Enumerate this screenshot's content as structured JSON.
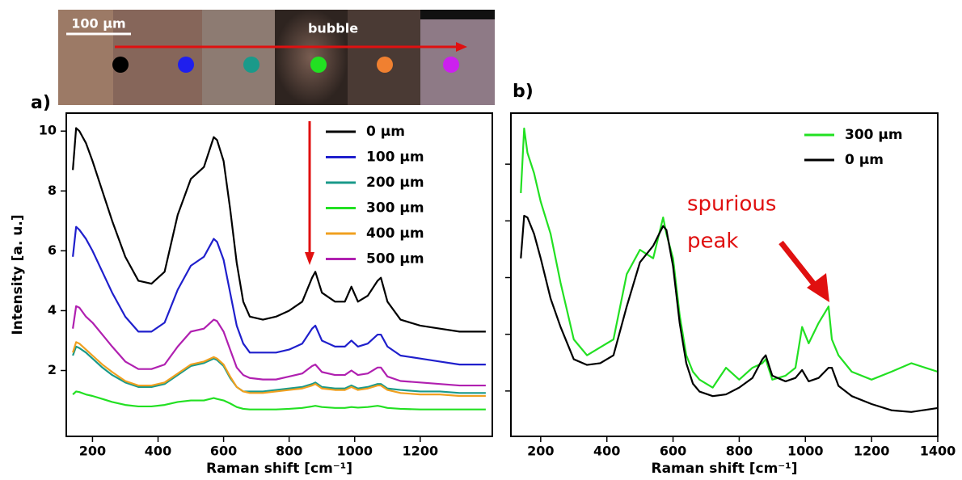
{
  "image": {
    "scale_bar": "100 µm",
    "label": "bubble"
  },
  "chart_data": [
    {
      "type": "line",
      "panel_label": "a)",
      "x_label": "Raman shift [cm⁻¹]",
      "y_label": "Intensity [a. u.]",
      "xlim": [
        120,
        1420
      ],
      "ylim": [
        -0.2,
        10.6
      ],
      "xticks": [
        200,
        400,
        600,
        800,
        1000,
        1200
      ],
      "yticks": [
        2,
        4,
        6,
        8,
        10
      ],
      "ytick_labels": true,
      "legend": "upper-right",
      "x": [
        140,
        150,
        160,
        180,
        200,
        230,
        260,
        300,
        340,
        380,
        420,
        460,
        500,
        540,
        570,
        580,
        600,
        620,
        640,
        660,
        680,
        720,
        760,
        800,
        840,
        870,
        880,
        900,
        940,
        970,
        990,
        1010,
        1040,
        1070,
        1080,
        1100,
        1140,
        1200,
        1260,
        1320,
        1400
      ],
      "series": [
        {
          "name": "0 µm",
          "color": "#000000",
          "values": [
            8.7,
            10.1,
            10.0,
            9.6,
            9.0,
            8.0,
            7.0,
            5.8,
            5.0,
            4.9,
            5.3,
            7.2,
            8.4,
            8.8,
            9.8,
            9.7,
            9.0,
            7.4,
            5.6,
            4.3,
            3.8,
            3.7,
            3.8,
            4.0,
            4.3,
            5.1,
            5.3,
            4.6,
            4.3,
            4.3,
            4.8,
            4.3,
            4.5,
            5.0,
            5.1,
            4.3,
            3.7,
            3.5,
            3.4,
            3.3,
            3.3
          ]
        },
        {
          "name": "100 µm",
          "color": "#1f1fcc",
          "values": [
            5.8,
            6.8,
            6.7,
            6.4,
            6.0,
            5.3,
            4.6,
            3.8,
            3.3,
            3.3,
            3.6,
            4.7,
            5.5,
            5.8,
            6.4,
            6.3,
            5.7,
            4.6,
            3.5,
            2.9,
            2.6,
            2.6,
            2.6,
            2.7,
            2.9,
            3.4,
            3.5,
            3.0,
            2.8,
            2.8,
            3.0,
            2.8,
            2.9,
            3.2,
            3.2,
            2.8,
            2.5,
            2.4,
            2.3,
            2.2,
            2.2
          ]
        },
        {
          "name": "200 µm",
          "color": "#1a9a8a",
          "values": [
            2.5,
            2.8,
            2.75,
            2.6,
            2.4,
            2.1,
            1.85,
            1.6,
            1.45,
            1.45,
            1.55,
            1.85,
            2.15,
            2.25,
            2.4,
            2.35,
            2.15,
            1.75,
            1.45,
            1.3,
            1.3,
            1.3,
            1.35,
            1.4,
            1.45,
            1.55,
            1.6,
            1.45,
            1.4,
            1.4,
            1.5,
            1.4,
            1.45,
            1.55,
            1.55,
            1.4,
            1.35,
            1.3,
            1.3,
            1.25,
            1.25
          ]
        },
        {
          "name": "300 µm",
          "color": "#22e022",
          "values": [
            1.2,
            1.3,
            1.28,
            1.2,
            1.15,
            1.05,
            0.95,
            0.85,
            0.8,
            0.8,
            0.85,
            0.95,
            1.0,
            1.0,
            1.08,
            1.05,
            1.0,
            0.9,
            0.78,
            0.72,
            0.7,
            0.7,
            0.7,
            0.72,
            0.75,
            0.8,
            0.82,
            0.78,
            0.75,
            0.75,
            0.78,
            0.76,
            0.78,
            0.82,
            0.8,
            0.75,
            0.72,
            0.7,
            0.7,
            0.7,
            0.7
          ]
        },
        {
          "name": "400 µm",
          "color": "#f0a020",
          "values": [
            2.6,
            2.95,
            2.9,
            2.7,
            2.5,
            2.2,
            1.95,
            1.65,
            1.5,
            1.5,
            1.6,
            1.9,
            2.2,
            2.3,
            2.45,
            2.4,
            2.2,
            1.8,
            1.45,
            1.3,
            1.25,
            1.25,
            1.3,
            1.35,
            1.4,
            1.5,
            1.55,
            1.4,
            1.35,
            1.35,
            1.45,
            1.35,
            1.4,
            1.5,
            1.5,
            1.35,
            1.25,
            1.2,
            1.2,
            1.15,
            1.15
          ]
        },
        {
          "name": "500 µm",
          "color": "#b020b0",
          "values": [
            3.4,
            4.15,
            4.1,
            3.8,
            3.6,
            3.2,
            2.8,
            2.3,
            2.05,
            2.05,
            2.2,
            2.8,
            3.3,
            3.4,
            3.7,
            3.65,
            3.3,
            2.7,
            2.1,
            1.85,
            1.75,
            1.7,
            1.7,
            1.8,
            1.9,
            2.15,
            2.2,
            1.95,
            1.85,
            1.85,
            2.0,
            1.85,
            1.9,
            2.1,
            2.1,
            1.8,
            1.65,
            1.6,
            1.55,
            1.5,
            1.5
          ]
        }
      ]
    },
    {
      "type": "line",
      "panel_label": "b)",
      "x_label": "Raman shift [cm⁻¹]",
      "annotation": [
        "spurious",
        "peak"
      ],
      "xlim": [
        110,
        1400
      ],
      "ylim": [
        0.2,
        5.9
      ],
      "xticks": [
        200,
        400,
        600,
        800,
        1000,
        1200,
        1400
      ],
      "yticks": [
        1,
        2,
        3,
        4,
        5
      ],
      "ytick_labels": false,
      "legend": "upper-right",
      "x": [
        140,
        150,
        160,
        180,
        200,
        230,
        260,
        300,
        340,
        380,
        420,
        460,
        500,
        540,
        570,
        580,
        600,
        620,
        640,
        660,
        680,
        720,
        760,
        800,
        840,
        870,
        880,
        900,
        940,
        970,
        990,
        1010,
        1040,
        1070,
        1080,
        1100,
        1140,
        1200,
        1260,
        1320,
        1400
      ],
      "series": [
        {
          "name": "300 µm",
          "color": "#22e022",
          "values": [
            4.49,
            5.63,
            5.2,
            4.84,
            4.34,
            3.77,
            2.91,
            1.91,
            1.63,
            1.77,
            1.91,
            3.06,
            3.49,
            3.34,
            4.06,
            3.77,
            3.34,
            2.34,
            1.63,
            1.34,
            1.2,
            1.06,
            1.41,
            1.2,
            1.41,
            1.49,
            1.56,
            1.2,
            1.27,
            1.41,
            2.13,
            1.84,
            2.2,
            2.49,
            1.91,
            1.63,
            1.34,
            1.2,
            1.34,
            1.49,
            1.34
          ]
        },
        {
          "name": "0 µm",
          "color": "#000000",
          "values": [
            3.34,
            4.09,
            4.06,
            3.77,
            3.34,
            2.63,
            2.13,
            1.56,
            1.46,
            1.49,
            1.63,
            2.49,
            3.27,
            3.56,
            3.91,
            3.84,
            3.2,
            2.2,
            1.49,
            1.13,
            0.99,
            0.91,
            0.94,
            1.06,
            1.23,
            1.56,
            1.63,
            1.27,
            1.17,
            1.23,
            1.37,
            1.17,
            1.23,
            1.41,
            1.41,
            1.09,
            0.91,
            0.77,
            0.66,
            0.63,
            0.7
          ]
        }
      ]
    }
  ]
}
